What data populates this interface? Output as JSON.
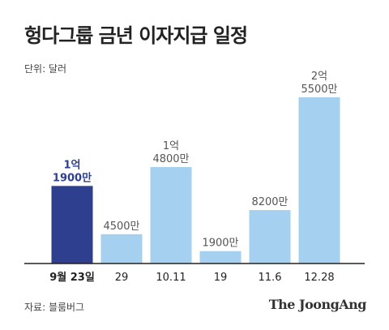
{
  "title": "헝다그룹 금년 이자지급 일정",
  "unit_label": "단위: 달러",
  "source_label": "자료: 블룸버그",
  "brand": "The JoongAng",
  "colors": {
    "highlight_bar": "#2f3f8f",
    "bar": "#a6d0ef",
    "highlight_label": "#2f3f8f",
    "label": "#555555",
    "axis": "#222222"
  },
  "chart_data": {
    "type": "bar",
    "title": "헝다그룹 금년 이자지급 일정",
    "unit": "단위: 달러",
    "categories": [
      "9월 23일",
      "29",
      "10.11",
      "19",
      "11.6",
      "12.28"
    ],
    "values": [
      119000000,
      45000000,
      148000000,
      19000000,
      82000000,
      255000000
    ],
    "value_labels": [
      [
        "1억",
        "1900만"
      ],
      [
        "4500만"
      ],
      [
        "1억",
        "4800만"
      ],
      [
        "1900만"
      ],
      [
        "8200만"
      ],
      [
        "2억",
        "5500만"
      ]
    ],
    "highlight_index": 0,
    "ylim": [
      0,
      255000000
    ],
    "grid": false,
    "legend": "none"
  }
}
